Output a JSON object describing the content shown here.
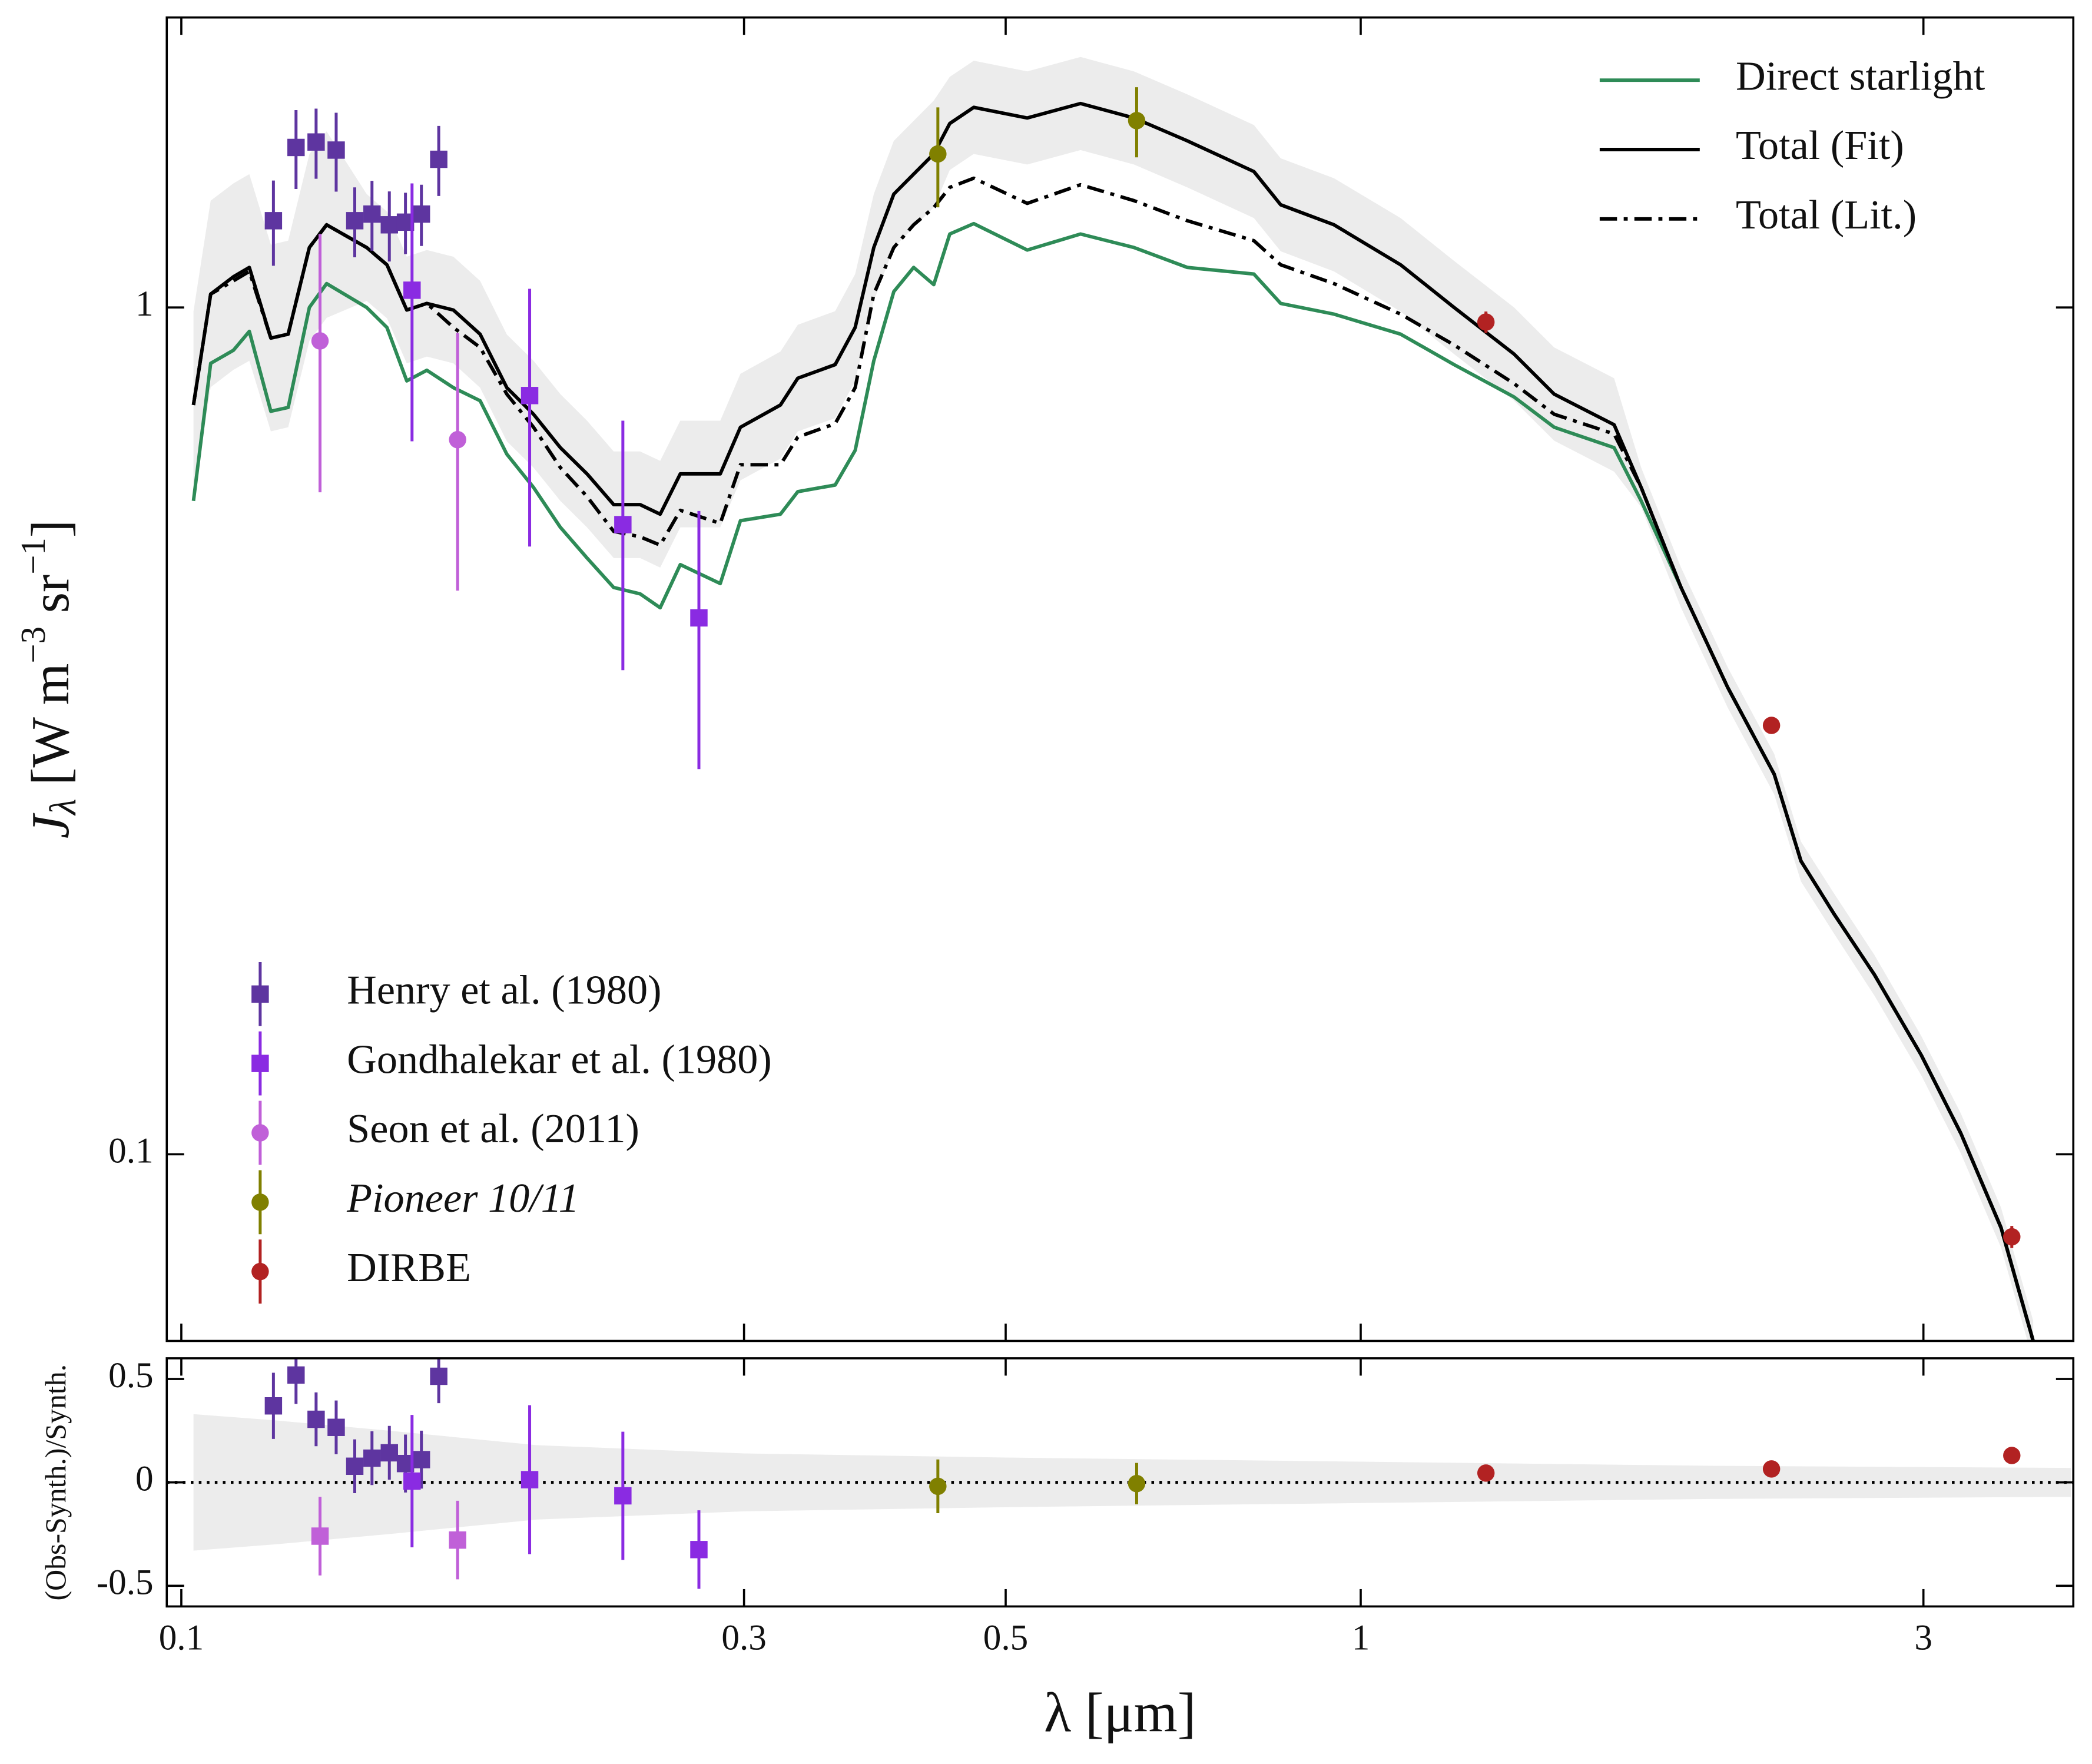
{
  "chart_data": [
    {
      "type": "line",
      "ylabel": [
        "J",
        "λ",
        " [W m",
        "−3",
        " sr",
        "−1",
        "]"
      ],
      "xscale": "log",
      "yscale": "log",
      "xlim": [
        0.0972,
        4.02
      ],
      "ylim": [
        0.0602,
        2.2
      ],
      "yticks": [
        0.1,
        1
      ],
      "x": [
        0.1024,
        0.1059,
        0.1107,
        0.1142,
        0.1191,
        0.1232,
        0.1284,
        0.1328,
        0.1436,
        0.1494,
        0.1553,
        0.1615,
        0.1701,
        0.1792,
        0.1888,
        0.1989,
        0.2096,
        0.2208,
        0.2326,
        0.2449,
        0.2547,
        0.2649,
        0.2864,
        0.2979,
        0.3221,
        0.3332,
        0.3584,
        0.3727,
        0.3865,
        0.4019,
        0.4178,
        0.4345,
        0.4483,
        0.4698,
        0.5215,
        0.5787,
        0.6423,
        0.7128,
        0.8118,
        0.8554,
        0.9492,
        1.081,
        1.2,
        1.349,
        1.459,
        1.64,
        1.729,
        1.869,
        2.047,
        2.242,
        2.362,
        2.521,
        2.726,
        2.987,
        3.228,
        3.491,
        3.717
      ],
      "band": {
        "color": "#ececec",
        "upper": [
          0.989,
          1.337,
          1.401,
          1.437,
          1.186,
          1.199,
          1.517,
          1.614,
          1.361,
          1.298,
          1.148,
          1.169,
          1.148,
          1.075,
          0.929,
          0.865,
          0.79,
          0.735,
          0.676,
          0.676,
          0.659,
          0.735,
          0.735,
          0.835,
          0.887,
          0.954,
          0.99,
          1.095,
          1.361,
          1.573,
          1.661,
          1.755,
          1.872,
          1.956,
          1.9,
          1.976,
          1.9,
          1.785,
          1.642,
          1.5,
          1.421,
          1.275,
          1.135,
          1.0,
          0.897,
          0.825,
          0.647,
          0.493,
          0.376,
          0.297,
          0.234,
          0.203,
          0.172,
          0.138,
          0.1117,
          0.0865,
          0.0636
        ],
        "lower": [
          0.595,
          0.805,
          0.844,
          0.865,
          0.714,
          0.722,
          0.913,
          0.972,
          1.018,
          0.971,
          0.859,
          0.875,
          0.859,
          0.804,
          0.695,
          0.647,
          0.591,
          0.55,
          0.506,
          0.506,
          0.493,
          0.55,
          0.55,
          0.625,
          0.663,
          0.714,
          0.74,
          0.819,
          1.018,
          1.177,
          1.243,
          1.313,
          1.453,
          1.518,
          1.475,
          1.534,
          1.475,
          1.386,
          1.275,
          1.165,
          1.103,
          0.989,
          0.881,
          0.776,
          0.696,
          0.64,
          0.581,
          0.442,
          0.337,
          0.266,
          0.21,
          0.182,
          0.154,
          0.124,
          0.1002,
          0.0776,
          0.057
        ]
      },
      "legend": "upper right",
      "series": [
        {
          "name": "Direct starlight",
          "color": "#2e8b57",
          "linestyle": "solid",
          "values": [
            0.591,
            0.859,
            0.89,
            0.937,
            0.754,
            0.762,
            1.0,
            1.067,
            1.0,
            0.947,
            0.819,
            0.843,
            0.804,
            0.776,
            0.671,
            0.613,
            0.55,
            0.506,
            0.467,
            0.459,
            0.442,
            0.497,
            0.472,
            0.56,
            0.57,
            0.606,
            0.617,
            0.678,
            0.865,
            1.044,
            1.115,
            1.064,
            1.221,
            1.256,
            1.169,
            1.221,
            1.177,
            1.115,
            1.095,
            1.011,
            0.982,
            0.93,
            0.856,
            0.784,
            0.722,
            0.683,
            0.591,
            0.467,
            0.356,
            0.281,
            0.222,
            0.192,
            0.163,
            0.131,
            0.1058,
            0.0819,
            0.0602
          ]
        },
        {
          "name": "Total (Fit)",
          "color": "#000000",
          "linestyle": "solid",
          "values": [
            0.767,
            1.037,
            1.087,
            1.115,
            0.92,
            0.93,
            1.177,
            1.252,
            1.177,
            1.123,
            0.993,
            1.011,
            0.993,
            0.93,
            0.804,
            0.748,
            0.683,
            0.636,
            0.585,
            0.585,
            0.57,
            0.636,
            0.636,
            0.722,
            0.767,
            0.825,
            0.856,
            0.947,
            1.177,
            1.361,
            1.437,
            1.518,
            1.649,
            1.723,
            1.674,
            1.741,
            1.674,
            1.573,
            1.447,
            1.322,
            1.252,
            1.123,
            1.0,
            0.881,
            0.79,
            0.727,
            0.613,
            0.467,
            0.356,
            0.281,
            0.222,
            0.192,
            0.163,
            0.131,
            0.1058,
            0.0819,
            0.0602
          ]
        },
        {
          "name": "Total (Lit.)",
          "color": "#000000",
          "linestyle": "dashdot",
          "values": [
            0.767,
            1.037,
            1.075,
            1.103,
            0.92,
            0.93,
            1.177,
            1.252,
            1.177,
            1.123,
            0.993,
            1.011,
            0.947,
            0.897,
            0.79,
            0.722,
            0.647,
            0.598,
            0.544,
            0.536,
            0.524,
            0.576,
            0.556,
            0.652,
            0.652,
            0.703,
            0.729,
            0.804,
            1.037,
            1.177,
            1.252,
            1.312,
            1.386,
            1.421,
            1.327,
            1.396,
            1.337,
            1.266,
            1.199,
            1.123,
            1.067,
            0.982,
            0.903,
            0.813,
            0.748,
            0.709,
            0.613,
            0.467,
            0.356,
            0.281,
            0.222,
            0.192,
            0.163,
            0.131,
            0.1058,
            0.0819,
            0.0602
          ]
        }
      ],
      "points_legend": "lower left",
      "points": [
        {
          "name": "Henry et al. (1980)",
          "color": "#5e35a0",
          "marker": "square",
          "x": [
            0.1197,
            0.1251,
            0.1301,
            0.1353,
            0.1403,
            0.1451,
            0.1501,
            0.1549,
            0.1598,
            0.1653
          ],
          "values": [
            1.266,
            1.545,
            1.568,
            1.534,
            1.266,
            1.289,
            1.252,
            1.261,
            1.289,
            1.496
          ],
          "errors": [
            0.146,
            0.165,
            0.149,
            0.164,
            0.12,
            0.122,
            0.119,
            0.105,
            0.107,
            0.142
          ]
        },
        {
          "name": "Gondhalekar et al. (1980)",
          "color": "#8a2be2",
          "marker": "square",
          "x": [
            0.1569,
            0.1974,
            0.2368,
            0.2747
          ],
          "values": [
            1.048,
            0.787,
            0.554,
            0.43
          ],
          "errors": [
            0.353,
            0.265,
            0.181,
            0.145
          ]
        },
        {
          "name": "Seon et al. (2011)",
          "color": "#c060d8",
          "marker": "circle",
          "x": [
            0.1311,
            0.1715
          ],
          "values": [
            0.913,
            0.698
          ],
          "errors": [
            0.308,
            0.235
          ]
        },
        {
          "name": "Pioneer 10/11",
          "font_style": "italic",
          "color": "#808000",
          "marker": "circle",
          "x": [
            0.438,
            0.6457
          ],
          "values": [
            1.518,
            1.662
          ],
          "errors": [
            0.205,
            0.158
          ]
        },
        {
          "name": "DIRBE",
          "color": "#b22222",
          "marker": "circle",
          "x": [
            1.277,
            2.23,
            3.565
          ],
          "values": [
            0.961,
            0.321,
            0.0799
          ],
          "errors": [
            0.028,
            0.006,
            0.0024
          ]
        }
      ]
    },
    {
      "type": "scatter",
      "ylabel": "(Obs-Synth.)/Synth.",
      "xlabel": "λ [μm]",
      "xscale": "log",
      "yscale": "linear",
      "xlim": [
        0.0972,
        4.02
      ],
      "ylim": [
        -0.6,
        0.6
      ],
      "xticks": [
        0.1,
        0.3,
        0.5,
        1,
        3
      ],
      "yticks": [
        -0.5,
        0,
        0.5
      ],
      "reference_line": 0,
      "band": {
        "color": "#ececec",
        "x": [
          0.1024,
          0.12,
          0.15,
          0.2,
          0.3,
          0.5,
          1,
          2,
          4.0
        ],
        "upper": [
          0.33,
          0.3,
          0.25,
          0.18,
          0.14,
          0.12,
          0.1,
          0.08,
          0.07
        ],
        "lower": [
          -0.33,
          -0.3,
          -0.25,
          -0.18,
          -0.14,
          -0.12,
          -0.1,
          -0.08,
          -0.07
        ]
      },
      "series": [
        {
          "color": "#5e35a0",
          "marker": "square",
          "x": [
            0.1197,
            0.1251,
            0.1301,
            0.1353,
            0.1403,
            0.1451,
            0.1501,
            0.1549,
            0.1598,
            0.1653
          ],
          "values": [
            0.37,
            0.519,
            0.305,
            0.266,
            0.078,
            0.117,
            0.143,
            0.091,
            0.11,
            0.513
          ],
          "errors": [
            0.16,
            0.14,
            0.13,
            0.13,
            0.13,
            0.13,
            0.13,
            0.14,
            0.14,
            0.13
          ]
        },
        {
          "color": "#8a2be2",
          "marker": "square",
          "x": [
            0.1569,
            0.1974,
            0.2368,
            0.2747
          ],
          "values": [
            0.006,
            0.013,
            -0.065,
            -0.325
          ],
          "errors": [
            0.32,
            0.36,
            0.31,
            0.19
          ]
        },
        {
          "color": "#c060d8",
          "marker": "square",
          "x": [
            0.1311,
            0.1715
          ],
          "values": [
            -0.26,
            -0.279
          ],
          "errors": [
            0.19,
            0.19
          ]
        },
        {
          "color": "#808000",
          "marker": "circle",
          "x": [
            0.438,
            0.6457
          ],
          "values": [
            -0.019,
            -0.006
          ],
          "errors": [
            0.13,
            0.1
          ]
        },
        {
          "color": "#b22222",
          "marker": "circle",
          "x": [
            1.277,
            2.23,
            3.565
          ],
          "values": [
            0.045,
            0.065,
            0.13
          ],
          "errors": [
            0.02,
            0.02,
            0.02
          ]
        }
      ]
    }
  ]
}
